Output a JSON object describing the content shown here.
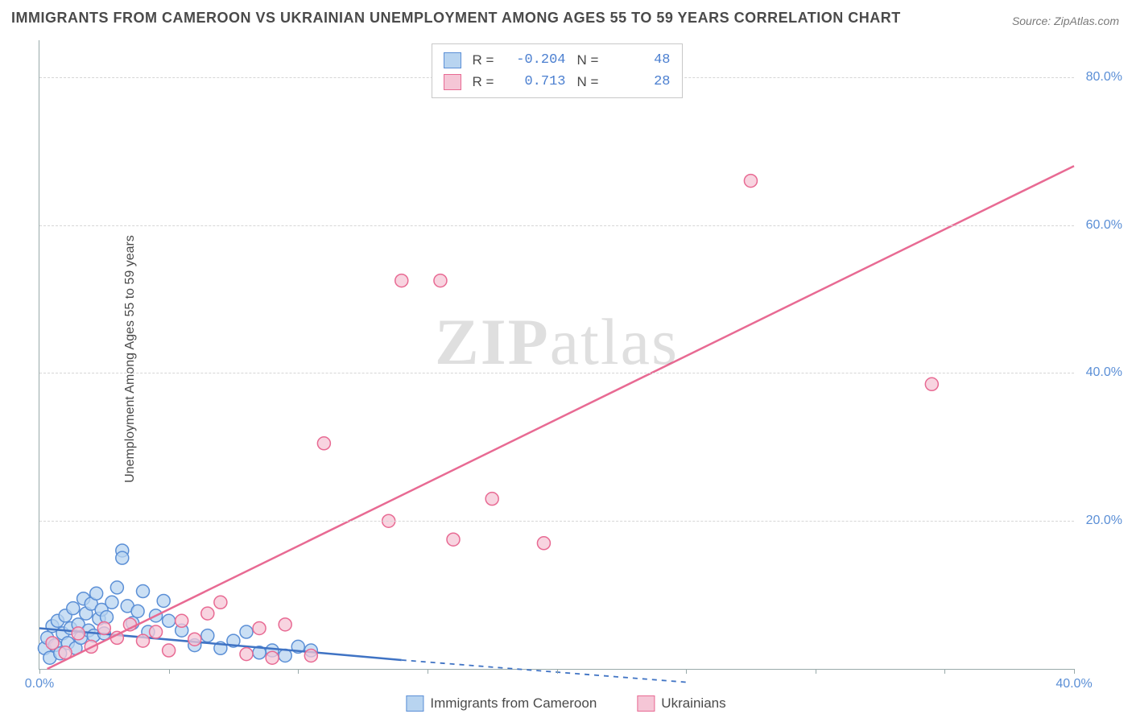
{
  "title": "IMMIGRANTS FROM CAMEROON VS UKRAINIAN UNEMPLOYMENT AMONG AGES 55 TO 59 YEARS CORRELATION CHART",
  "source": "Source: ZipAtlas.com",
  "ylabel": "Unemployment Among Ages 55 to 59 years",
  "watermark_zip": "ZIP",
  "watermark_atlas": "atlas",
  "chart": {
    "type": "scatter",
    "background_color": "#ffffff",
    "grid_color": "#d6d6d6",
    "axis_color": "#9aa0a6",
    "xlim": [
      0,
      40
    ],
    "ylim": [
      0,
      85
    ],
    "xticks": [
      0,
      5,
      10,
      15,
      20,
      25,
      30,
      35,
      40
    ],
    "xtick_labels": {
      "0": "0.0%",
      "40": "40.0%"
    },
    "yticks": [
      20,
      40,
      60,
      80
    ],
    "ytick_labels": {
      "20": "20.0%",
      "40": "40.0%",
      "60": "60.0%",
      "80": "80.0%"
    },
    "series": [
      {
        "name": "Immigrants from Cameroon",
        "color_fill": "#b8d4f0",
        "color_stroke": "#5b8fd6",
        "marker_radius": 8,
        "marker_opacity": 0.75,
        "R": "-0.204",
        "N": "48",
        "trend": {
          "x1": 0,
          "y1": 5.5,
          "x2": 14,
          "y2": 1.2,
          "extend_x2": 25,
          "extend_y2": -1.8,
          "dash": true,
          "line_color": "#3f73c4",
          "line_width": 2.5
        },
        "points": [
          [
            0.2,
            2.8
          ],
          [
            0.3,
            4.2
          ],
          [
            0.4,
            1.5
          ],
          [
            0.5,
            5.8
          ],
          [
            0.6,
            3.2
          ],
          [
            0.7,
            6.5
          ],
          [
            0.8,
            2.1
          ],
          [
            0.9,
            4.8
          ],
          [
            1.0,
            7.2
          ],
          [
            1.1,
            3.5
          ],
          [
            1.2,
            5.5
          ],
          [
            1.3,
            8.2
          ],
          [
            1.4,
            2.8
          ],
          [
            1.5,
            6.0
          ],
          [
            1.6,
            4.2
          ],
          [
            1.7,
            9.5
          ],
          [
            1.8,
            7.5
          ],
          [
            1.9,
            5.2
          ],
          [
            2.0,
            8.8
          ],
          [
            2.1,
            4.5
          ],
          [
            2.2,
            10.2
          ],
          [
            2.3,
            6.8
          ],
          [
            2.4,
            8.0
          ],
          [
            2.5,
            4.8
          ],
          [
            2.6,
            7.0
          ],
          [
            2.8,
            9.0
          ],
          [
            3.0,
            11.0
          ],
          [
            3.2,
            16.0
          ],
          [
            3.2,
            15.0
          ],
          [
            3.4,
            8.5
          ],
          [
            3.6,
            6.2
          ],
          [
            3.8,
            7.8
          ],
          [
            4.0,
            10.5
          ],
          [
            4.2,
            5.0
          ],
          [
            4.5,
            7.2
          ],
          [
            4.8,
            9.2
          ],
          [
            5.0,
            6.5
          ],
          [
            5.5,
            5.2
          ],
          [
            6.0,
            3.2
          ],
          [
            6.5,
            4.5
          ],
          [
            7.0,
            2.8
          ],
          [
            7.5,
            3.8
          ],
          [
            8.0,
            5.0
          ],
          [
            8.5,
            2.2
          ],
          [
            9.0,
            2.5
          ],
          [
            9.5,
            1.8
          ],
          [
            10.0,
            3.0
          ],
          [
            10.5,
            2.5
          ]
        ]
      },
      {
        "name": "Ukrainians",
        "color_fill": "#f5c6d6",
        "color_stroke": "#e86a93",
        "marker_radius": 8,
        "marker_opacity": 0.75,
        "R": "0.713",
        "N": "28",
        "trend": {
          "x1": 0.3,
          "y1": 0,
          "x2": 40,
          "y2": 68,
          "dash": false,
          "line_color": "#e86a93",
          "line_width": 2.5
        },
        "points": [
          [
            0.5,
            3.5
          ],
          [
            1.0,
            2.2
          ],
          [
            1.5,
            4.8
          ],
          [
            2.0,
            3.0
          ],
          [
            2.5,
            5.5
          ],
          [
            3.0,
            4.2
          ],
          [
            3.5,
            6.0
          ],
          [
            4.0,
            3.8
          ],
          [
            4.5,
            5.0
          ],
          [
            5.0,
            2.5
          ],
          [
            5.5,
            6.5
          ],
          [
            6.0,
            4.0
          ],
          [
            6.5,
            7.5
          ],
          [
            7.0,
            9.0
          ],
          [
            8.0,
            2.0
          ],
          [
            8.5,
            5.5
          ],
          [
            9.0,
            1.5
          ],
          [
            9.5,
            6.0
          ],
          [
            10.5,
            1.8
          ],
          [
            11.0,
            30.5
          ],
          [
            13.5,
            20.0
          ],
          [
            14.0,
            52.5
          ],
          [
            15.5,
            52.5
          ],
          [
            16.0,
            17.5
          ],
          [
            17.5,
            23.0
          ],
          [
            19.5,
            17.0
          ],
          [
            27.5,
            66.0
          ],
          [
            34.5,
            38.5
          ]
        ]
      }
    ]
  },
  "legend_labels": {
    "R": "R =",
    "N": "N ="
  }
}
